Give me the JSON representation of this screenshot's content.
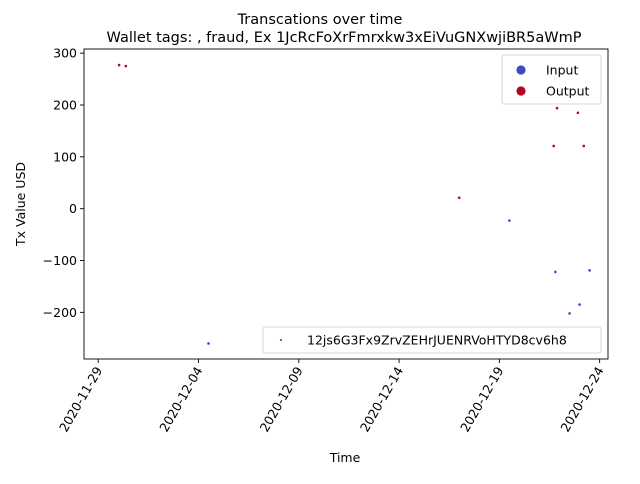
{
  "chart_data": {
    "type": "scatter",
    "suptitle": "Transcations over time",
    "title": "Wallet tags: , fraud, Ex 1JcRcFoXrFmrxkw3xEiVuGNXwjiBR5aWmP",
    "xlabel": "Time",
    "ylabel": "Tx Value USD",
    "x_ticks": [
      "2020-11-29",
      "2020-12-04",
      "2020-12-09",
      "2020-12-14",
      "2020-12-19",
      "2020-12-24"
    ],
    "y_ticks": [
      300,
      200,
      100,
      0,
      -100,
      -200
    ],
    "y_tick_labels": [
      "300",
      "200",
      "100",
      "0",
      "−100",
      "−200"
    ],
    "xlim": [
      "2020-11-28T07:00",
      "2020-12-24T10:00"
    ],
    "ylim": [
      -290,
      308
    ],
    "grid": false,
    "legend_main": {
      "placement": "upper right",
      "entries": [
        {
          "name": "Input",
          "color": "#3b4cc0"
        },
        {
          "name": "Output",
          "color": "#b40426"
        }
      ]
    },
    "legend_secondary": {
      "placement": "lower right",
      "entries": [
        {
          "name": "12js6G3Fx9ZrvZEHrJUENRVoHTYD8cv6h8",
          "color": "#1f77b4"
        }
      ]
    },
    "series": [
      {
        "name": "Input",
        "color": "#3b4cc0",
        "points": [
          {
            "x": "2020-12-04T12:00",
            "y": -260
          },
          {
            "x": "2020-12-19T12:00",
            "y": -23
          },
          {
            "x": "2020-12-21T19:00",
            "y": -122
          },
          {
            "x": "2020-12-22T12:00",
            "y": -202
          },
          {
            "x": "2020-12-23T00:00",
            "y": -185
          },
          {
            "x": "2020-12-23T12:00",
            "y": -119
          }
        ]
      },
      {
        "name": "Output",
        "color": "#b40426",
        "points": [
          {
            "x": "2020-11-30T01:00",
            "y": 277
          },
          {
            "x": "2020-11-30T09:00",
            "y": 275
          },
          {
            "x": "2020-12-17T00:00",
            "y": 21
          },
          {
            "x": "2020-12-21T17:00",
            "y": 121
          },
          {
            "x": "2020-12-21T21:00",
            "y": 194
          },
          {
            "x": "2020-12-22T22:00",
            "y": 185
          },
          {
            "x": "2020-12-23T05:00",
            "y": 121
          }
        ]
      }
    ]
  }
}
